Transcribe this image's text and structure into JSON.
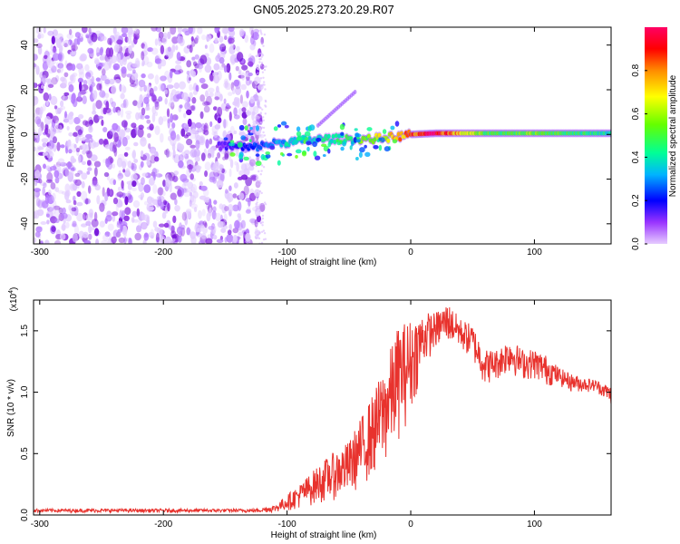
{
  "title": "GN05.2025.273.20.29.R07",
  "chart_data": [
    {
      "type": "heatmap",
      "name": "spectrogram",
      "xlabel": "Height of straight line (km)",
      "ylabel": "Frequency (Hz)",
      "xlim": [
        -305,
        162
      ],
      "ylim": [
        -49,
        48
      ],
      "xticks": [
        -300,
        -200,
        -100,
        0,
        100
      ],
      "xtick_labels": [
        "-300",
        "-200",
        "-100",
        "0",
        "100"
      ],
      "yticks": [
        -40,
        -20,
        0,
        20,
        40
      ],
      "ytick_labels": [
        "-40",
        "-20",
        "0",
        "20",
        "40"
      ],
      "noise_region_x": [
        -305,
        -120
      ],
      "signal_trace": {
        "x": [
          -155,
          -130,
          -110,
          -90,
          -70,
          -50,
          -30,
          -10,
          0,
          20,
          40,
          60,
          80,
          100,
          120,
          140,
          162
        ],
        "freq": [
          -5,
          -6,
          -4,
          -3,
          -2,
          -2,
          -2,
          -1,
          0,
          0.5,
          0.5,
          0.5,
          0.5,
          0.5,
          0.5,
          0.5,
          0.5
        ],
        "amplitude": [
          0.12,
          0.22,
          0.3,
          0.35,
          0.4,
          0.45,
          0.6,
          0.75,
          0.8,
          0.98,
          0.7,
          0.5,
          0.5,
          0.55,
          0.5,
          0.45,
          0.4
        ]
      },
      "colorbar": {
        "label": "Normalized spectral amplitude",
        "ticks": [
          0.0,
          0.2,
          0.4,
          0.6,
          0.8
        ],
        "tick_labels": [
          "0.0",
          "0.2",
          "0.4",
          "0.6",
          "0.8"
        ],
        "colors": [
          "#cc99ff",
          "#6a00d6",
          "#0000ff",
          "#00c8ff",
          "#00ff80",
          "#7fff00",
          "#ffff00",
          "#ff8000",
          "#ff0000",
          "#ff0050"
        ]
      }
    },
    {
      "type": "line",
      "name": "snr",
      "xlabel": "Height of straight line (km)",
      "ylabel": "SNR (10 * v/v)",
      "y_multiplier": "(x10",
      "y_multiplier_exp": "4",
      "xlim": [
        -305,
        162
      ],
      "ylim": [
        0,
        1.75
      ],
      "xticks": [
        -300,
        -200,
        -100,
        0,
        100
      ],
      "xtick_labels": [
        "-300",
        "-200",
        "-100",
        "0",
        "100"
      ],
      "yticks": [
        0.0,
        0.5,
        1.0,
        1.5
      ],
      "ytick_labels": [
        "0.0",
        "0.5",
        "1.0",
        "1.5"
      ],
      "color": "#e8322d",
      "envelope": {
        "x": [
          -305,
          -200,
          -125,
          -110,
          -90,
          -70,
          -50,
          -30,
          -20,
          -10,
          0,
          10,
          20,
          30,
          40,
          50,
          60,
          70,
          80,
          90,
          100,
          110,
          120,
          130,
          140,
          150,
          162
        ],
        "low": [
          0.02,
          0.02,
          0.02,
          0.02,
          0.05,
          0.1,
          0.15,
          0.3,
          0.4,
          0.6,
          0.8,
          1.2,
          1.35,
          1.4,
          1.35,
          1.25,
          1.05,
          1.1,
          1.15,
          1.1,
          1.1,
          1.05,
          1.05,
          1.0,
          1.0,
          1.0,
          0.9
        ],
        "high": [
          0.05,
          0.05,
          0.05,
          0.08,
          0.25,
          0.45,
          0.6,
          1.0,
          1.25,
          1.55,
          1.6,
          1.65,
          1.65,
          1.73,
          1.6,
          1.55,
          1.35,
          1.35,
          1.45,
          1.35,
          1.35,
          1.3,
          1.2,
          1.15,
          1.12,
          1.1,
          1.05
        ]
      }
    }
  ]
}
